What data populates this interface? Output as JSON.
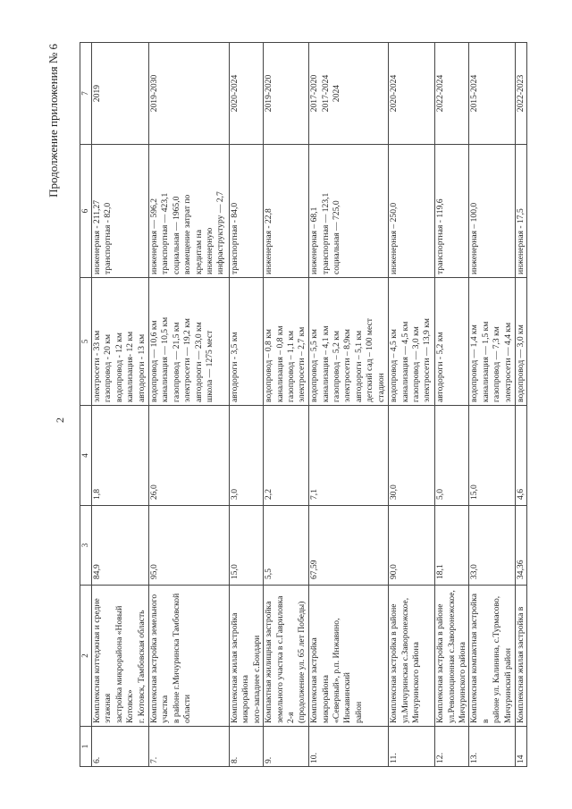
{
  "document": {
    "title": "Продолжение приложения № 6",
    "page_number": "2"
  },
  "table": {
    "column_numbers": [
      "1",
      "2",
      "3",
      "4",
      "5",
      "6",
      "7"
    ],
    "rows": [
      {
        "num": "6.",
        "name": "Комплексная коттеджная и средне этажная\nзастройка микрорайона «Новый Котовск»\nг. Котовск, Тамбовская область",
        "col3": "84,9",
        "col4": "1,8",
        "networks": "электросети - 33 км\nгазопровод - 20 км\nводопровод - 12 км\nканализация- 12 км\nавтодороги - 13 км",
        "costs": "инженерная - 211,27\nтранспортная - 82,0",
        "period": "2019"
      },
      {
        "num": "7.",
        "name": "Комплексная застройка земельного участка\nв районе г.Мичуринска Тамбовской\nобласти",
        "col3": "95,0",
        "col4": "26,0",
        "networks": "водопровод — 10,6 км\nканализация — 10,5 км\nгазопровод — 21,5 км\nэлектросети — 19,2 км\nавтодороги — 23,0 км\nшкола — 1275 мест",
        "costs": "инженерная — 596,2\nтранспортная — 423,1\nсоциальная — 1965,0\nвозмещение затрат по\nкредитам на\nинженерную\nинфраструктуру — 2,7",
        "period": "2019-2030"
      },
      {
        "num": "8.",
        "name": "Комплексная жилая застройка микрорайона\nюго-западнее с.Бондари",
        "col3": "15,0",
        "col4": "3,0",
        "networks": "автодороги - 3,5 км",
        "costs": "транспортная - 84,0",
        "period": "2020-2024"
      },
      {
        "num": "9.",
        "name": "Компактная жилищная застройка\nземельного участка в с.Гавриловка 2-я\n(продолжение ул. 65 лет Победы)",
        "col3": "5,5",
        "col4": "2,2",
        "networks": "водопровод – 0,8 км\nканализация – 0,8 км\nгазопровод – 1,1 км\nэлектросети – 2,7 км",
        "costs": "инженерная - 22,8",
        "period": "2019-2020"
      },
      {
        "num": "10.",
        "name": "Комплексная застройка микрорайона\n«Северный», р.п. Инжавино, Инжавинский\nрайон",
        "col3": "67,59",
        "col4": "7,1",
        "networks": "водопровод – 5,5 км\nканализация – 4,1 км\nгазопровод – 5,2 км\nэлектросети – 8,9км\nавтодороги – 5,1 км\nдетский сад – 100 мест\nстадион",
        "costs": "инженерная – 68,1\nтранспортная — 123,1\nсоциальная — 725,0",
        "period": "2017-2020\n2017-2024\n2024"
      },
      {
        "num": "11.",
        "name": "Комплексная застройка в районе\nул.Мичуринская с.Заворонежское,\nМичуринского района",
        "col3": "90,0",
        "col4": "30,0",
        "networks": "водопровод – 4,5 км\nканализация — 4,5 км\nгазопровод — 3,0 км\nэлектросети — 13,9 км",
        "costs": "инженерная – 250,0",
        "period": "2020-2024"
      },
      {
        "num": "12.",
        "name": "Комплексная застройка в районе\nул.Революционная с.Заворонежское,\nМичуринского района",
        "col3": "18,1",
        "col4": "5,0",
        "networks": "автодороги - 5,2 км",
        "costs": "транспортная - 119,6",
        "period": "2022-2024"
      },
      {
        "num": "13.",
        "name": "Комплексная компактная застройка в\nрайоне ул. Калинина, с.Турмасово,\nМичуринский район",
        "col3": "33,0",
        "col4": "15,0",
        "networks": "водопровод — 1,4 км\nканализация — 1,5 км\nгазопровод — 7,3 км\nэлектросети — 4,4 км",
        "costs": "инженерная – 100,0",
        "period": "2015-2024"
      },
      {
        "num": "14",
        "name": "Комплексная жилая застройка в",
        "col3": "34,36",
        "col4": "4,6",
        "networks": "водопровод — 3,0 км",
        "costs": "инженерная - 17,5",
        "period": "2022-2023"
      }
    ]
  }
}
